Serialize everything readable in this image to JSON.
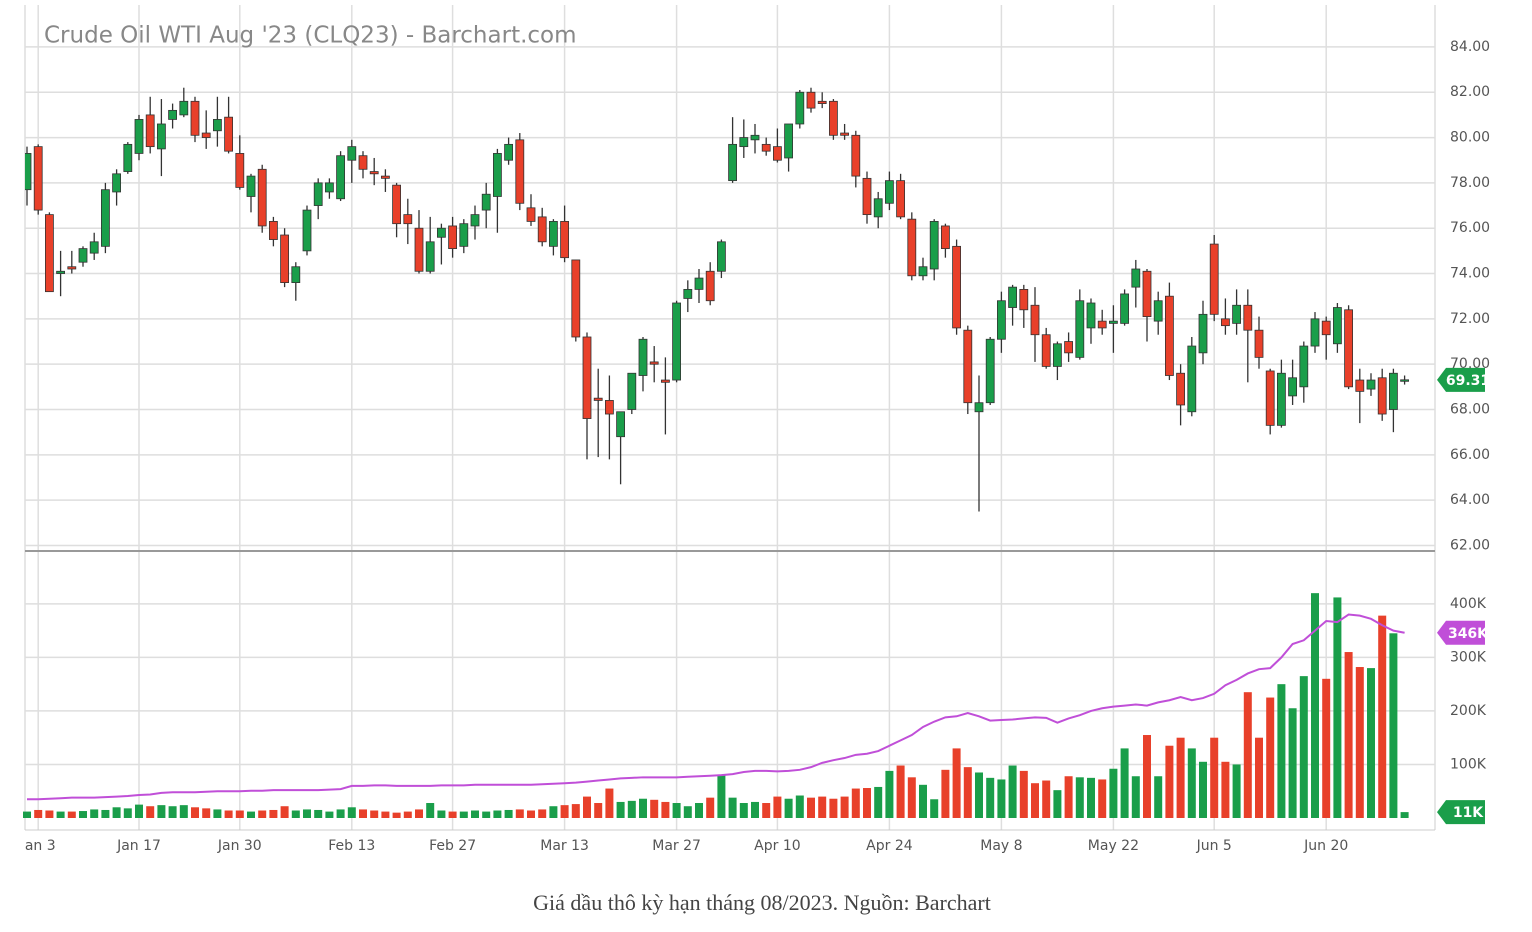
{
  "chart_data": {
    "type": "candlestick",
    "title": "Crude Oil WTI Aug '23 (CLQ23) - Barchart.com",
    "caption": "Giá dầu thô kỳ hạn tháng 08/2023. Nguồn: Barchart",
    "categories": [
      null,
      "Jan 3",
      null,
      null,
      null,
      null,
      null,
      null,
      null,
      null,
      "Jan 17",
      null,
      null,
      null,
      null,
      null,
      null,
      null,
      null,
      "Jan 30",
      null,
      null,
      null,
      null,
      null,
      null,
      null,
      null,
      null,
      "Feb 13",
      null,
      null,
      null,
      null,
      null,
      null,
      null,
      null,
      "Feb 27",
      null,
      null,
      null,
      null,
      null,
      null,
      null,
      null,
      null,
      "Mar 13",
      null,
      null,
      null,
      null,
      null,
      null,
      null,
      null,
      null,
      "Mar 27",
      null,
      null,
      null,
      null,
      null,
      null,
      null,
      null,
      "Apr 10",
      null,
      null,
      null,
      null,
      null,
      null,
      null,
      null,
      null,
      "Apr 24",
      null,
      null,
      null,
      null,
      null,
      null,
      null,
      null,
      null,
      "May 8",
      null,
      null,
      null,
      null,
      null,
      null,
      null,
      null,
      null,
      "May 22",
      null,
      null,
      null,
      null,
      null,
      null,
      null,
      null,
      "Jun 5",
      null,
      null,
      null,
      null,
      null,
      null,
      null,
      null,
      null,
      "Jun 20",
      null,
      null,
      null,
      null,
      null,
      null,
      null
    ],
    "open": [
      77.7,
      79.6,
      76.6,
      74.0,
      74.3,
      74.5,
      74.9,
      75.2,
      77.6,
      78.5,
      79.3,
      81.0,
      79.5,
      80.8,
      81.0,
      81.6,
      80.2,
      80.3,
      80.9,
      79.3,
      77.4,
      78.6,
      76.3,
      75.7,
      73.6,
      75.0,
      77.0,
      77.6,
      77.3,
      79.0,
      79.2,
      78.5,
      78.3,
      77.9,
      76.6,
      76.0,
      74.1,
      75.6,
      76.1,
      75.2,
      76.1,
      76.8,
      77.4,
      79.0,
      79.9,
      76.9,
      76.5,
      75.2,
      76.3,
      74.6,
      71.2,
      68.5,
      68.4,
      66.8,
      68.0,
      69.5,
      70.1,
      69.3,
      69.3,
      72.9,
      73.3,
      74.1,
      74.1,
      78.1,
      79.6,
      79.9,
      79.7,
      79.6,
      79.1,
      80.6,
      82.0,
      81.6,
      81.6,
      80.2,
      80.1,
      78.2,
      76.5,
      77.1,
      78.1,
      76.4,
      73.9,
      74.2,
      76.1,
      75.2,
      71.5,
      67.9,
      68.3,
      71.1,
      72.5,
      73.3,
      72.6,
      71.3,
      69.9,
      71.0,
      70.3,
      71.6,
      71.9,
      71.8,
      71.8,
      73.4,
      74.1,
      71.9,
      73.0,
      69.6,
      67.9,
      70.5,
      75.3,
      72.0,
      71.8,
      72.6,
      71.5,
      69.7,
      67.3,
      68.6,
      69.0,
      70.8,
      71.9,
      70.9,
      72.4,
      69.3,
      68.9,
      69.4,
      68.0,
      69.3
    ],
    "high": [
      79.6,
      79.7,
      76.7,
      75.0,
      75.0,
      75.2,
      75.8,
      78.0,
      78.6,
      79.8,
      81.0,
      81.8,
      81.7,
      81.5,
      82.2,
      81.8,
      81.2,
      81.8,
      81.8,
      80.1,
      78.4,
      78.8,
      76.5,
      76.0,
      74.5,
      77.0,
      78.2,
      78.2,
      79.4,
      79.9,
      79.4,
      79.1,
      78.6,
      78.0,
      77.3,
      76.8,
      76.5,
      76.2,
      76.5,
      76.4,
      77.0,
      78.0,
      79.5,
      80.0,
      80.2,
      77.5,
      76.9,
      76.4,
      77.0,
      74.6,
      71.4,
      69.8,
      69.5,
      67.9,
      69.6,
      71.2,
      70.8,
      70.3,
      72.8,
      73.7,
      74.2,
      74.5,
      75.5,
      80.9,
      80.8,
      80.6,
      80.0,
      80.4,
      80.6,
      82.1,
      82.2,
      82.0,
      81.7,
      80.6,
      80.3,
      78.5,
      77.6,
      78.5,
      78.4,
      76.7,
      74.7,
      76.4,
      76.2,
      75.5,
      71.7,
      69.5,
      71.2,
      73.2,
      73.5,
      73.5,
      73.4,
      71.6,
      71.0,
      71.4,
      73.3,
      72.9,
      72.4,
      72.6,
      73.3,
      74.6,
      74.2,
      73.2,
      73.6,
      70.0,
      71.2,
      72.8,
      75.7,
      72.9,
      73.3,
      73.3,
      72.1,
      69.8,
      70.2,
      70.2,
      71.0,
      72.3,
      72.1,
      72.7,
      72.6,
      69.8,
      69.6,
      69.8,
      69.8,
      69.5
    ],
    "low": [
      77.0,
      76.6,
      73.2,
      73.0,
      74.0,
      74.3,
      74.6,
      74.9,
      77.0,
      78.4,
      79.0,
      79.3,
      78.3,
      80.4,
      80.9,
      79.8,
      79.5,
      79.6,
      79.3,
      77.7,
      76.7,
      75.8,
      75.2,
      73.4,
      72.8,
      74.8,
      76.4,
      77.3,
      77.2,
      78.0,
      78.2,
      77.9,
      77.6,
      75.6,
      75.3,
      74.0,
      74.0,
      74.4,
      74.7,
      74.9,
      75.5,
      76.0,
      75.8,
      78.8,
      76.8,
      76.1,
      75.2,
      74.8,
      74.5,
      71.0,
      65.8,
      65.9,
      65.8,
      64.7,
      67.8,
      68.8,
      69.2,
      66.9,
      69.2,
      72.3,
      72.7,
      72.6,
      73.8,
      78.0,
      79.1,
      79.3,
      79.2,
      78.9,
      78.5,
      80.4,
      81.1,
      81.3,
      79.9,
      79.9,
      77.8,
      76.2,
      76.0,
      76.8,
      76.4,
      73.7,
      73.7,
      73.7,
      74.7,
      71.3,
      67.8,
      63.5,
      68.2,
      70.5,
      71.7,
      71.6,
      70.1,
      69.8,
      69.3,
      70.1,
      70.2,
      70.9,
      71.3,
      70.5,
      71.7,
      72.5,
      71.0,
      71.3,
      69.3,
      67.3,
      67.7,
      70.0,
      71.9,
      71.3,
      71.3,
      69.2,
      69.8,
      66.9,
      67.2,
      68.2,
      68.3,
      70.5,
      70.2,
      70.5,
      68.9,
      67.4,
      68.6,
      67.5,
      67.0,
      69.1
    ],
    "close": [
      79.3,
      76.8,
      73.2,
      74.1,
      74.2,
      75.1,
      75.4,
      77.7,
      78.4,
      79.7,
      80.8,
      79.6,
      80.6,
      81.2,
      81.6,
      80.1,
      80.0,
      80.8,
      79.4,
      77.8,
      78.3,
      76.1,
      75.5,
      73.6,
      74.3,
      76.8,
      78.0,
      78.0,
      79.2,
      79.6,
      78.6,
      78.4,
      78.2,
      76.2,
      76.2,
      74.1,
      75.4,
      76.0,
      75.1,
      76.2,
      76.6,
      77.5,
      79.3,
      79.7,
      77.1,
      76.3,
      75.4,
      76.3,
      74.7,
      71.2,
      67.6,
      68.4,
      67.8,
      67.9,
      69.6,
      71.1,
      70.0,
      69.2,
      72.7,
      73.3,
      73.8,
      72.8,
      75.4,
      79.7,
      80.0,
      80.1,
      79.4,
      79.0,
      80.6,
      82.0,
      81.3,
      81.5,
      80.1,
      80.1,
      78.3,
      76.6,
      77.3,
      78.1,
      76.5,
      73.9,
      74.3,
      76.3,
      75.1,
      71.6,
      68.3,
      68.3,
      71.1,
      72.8,
      73.4,
      72.4,
      71.3,
      69.9,
      70.9,
      70.5,
      72.8,
      72.7,
      71.6,
      71.9,
      73.1,
      74.2,
      72.1,
      72.8,
      69.5,
      68.2,
      70.8,
      72.2,
      72.2,
      71.7,
      72.6,
      71.5,
      70.3,
      67.3,
      69.6,
      69.4,
      70.8,
      72.0,
      71.3,
      72.5,
      69.0,
      68.8,
      69.3,
      67.8,
      69.6,
      69.31
    ],
    "volume": [
      12000,
      15000,
      14000,
      12000,
      12000,
      13000,
      16000,
      15000,
      20000,
      18000,
      25000,
      22000,
      24000,
      22000,
      24000,
      20000,
      18000,
      16000,
      14000,
      14000,
      12000,
      14000,
      15000,
      22000,
      14000,
      16000,
      15000,
      12000,
      16000,
      20000,
      16000,
      14000,
      12000,
      10000,
      12000,
      16000,
      28000,
      14000,
      12000,
      12000,
      14000,
      12000,
      14000,
      15000,
      16000,
      14000,
      16000,
      22000,
      24000,
      26000,
      40000,
      28000,
      55000,
      30000,
      32000,
      36000,
      34000,
      30000,
      28000,
      22000,
      28000,
      38000,
      80000,
      38000,
      28000,
      30000,
      28000,
      40000,
      36000,
      42000,
      38000,
      40000,
      36000,
      40000,
      55000,
      56000,
      58000,
      88000,
      98000,
      76000,
      62000,
      35000,
      90000,
      130000,
      95000,
      85000,
      75000,
      72000,
      98000,
      88000,
      65000,
      70000,
      52000,
      78000,
      76000,
      75000,
      72000,
      92000,
      130000,
      78000,
      155000,
      78000,
      135000,
      150000,
      130000,
      105000,
      150000,
      105000,
      100000,
      235000,
      150000,
      225000,
      250000,
      205000,
      265000,
      420000,
      260000,
      412000,
      310000,
      282000,
      280000,
      378000,
      345000,
      11000
    ],
    "volume_ma": [
      35000,
      35000,
      36000,
      37000,
      38000,
      38000,
      38000,
      39000,
      40000,
      41000,
      43000,
      44000,
      47000,
      48000,
      48000,
      48000,
      49000,
      50000,
      50000,
      50000,
      51000,
      51000,
      52000,
      52000,
      52000,
      52000,
      52000,
      53000,
      54000,
      60000,
      60000,
      61000,
      61000,
      60000,
      60000,
      60000,
      60000,
      61000,
      61000,
      61000,
      62000,
      62000,
      62000,
      62000,
      62000,
      62000,
      63000,
      64000,
      65000,
      66000,
      68000,
      70000,
      72000,
      74000,
      75000,
      76000,
      76000,
      76000,
      76000,
      77000,
      78000,
      79000,
      80000,
      82000,
      86000,
      88000,
      88000,
      87000,
      88000,
      90000,
      95000,
      103000,
      108000,
      112000,
      118000,
      120000,
      125000,
      135000,
      145000,
      155000,
      170000,
      180000,
      188000,
      190000,
      196000,
      190000,
      182000,
      183000,
      184000,
      186000,
      188000,
      187000,
      178000,
      186000,
      192000,
      200000,
      205000,
      208000,
      210000,
      212000,
      210000,
      216000,
      220000,
      226000,
      220000,
      224000,
      232000,
      248000,
      258000,
      270000,
      278000,
      280000,
      300000,
      325000,
      332000,
      350000,
      368000,
      366000,
      380000,
      378000,
      372000,
      360000,
      350000,
      346000
    ],
    "volume_last_label": "11K",
    "volume_ma_last_label": "346K",
    "up_color": "#1a9e4a",
    "down_color": "#e8402a",
    "ma_color": "#c04fd8",
    "ylim": [
      61.8,
      85.85
    ],
    "yticks": [
      {
        "value": 62,
        "label": "62.00"
      },
      {
        "value": 64,
        "label": "64.00"
      },
      {
        "value": 66,
        "label": "66.00"
      },
      {
        "value": 68,
        "label": "68.00"
      },
      {
        "value": 70,
        "label": "70.00"
      },
      {
        "value": 72,
        "label": "72.00"
      },
      {
        "value": 74,
        "label": "74.00"
      },
      {
        "value": 76,
        "label": "76.00"
      },
      {
        "value": 78,
        "label": "78.00"
      },
      {
        "value": 80,
        "label": "80.00"
      },
      {
        "value": 82,
        "label": "82.00"
      },
      {
        "value": 84,
        "label": "84.00"
      }
    ],
    "y2lim": [
      0,
      495000
    ],
    "y2ticks": [
      {
        "value": 100000,
        "label": "100K"
      },
      {
        "value": 200000,
        "label": "200K"
      },
      {
        "value": 300000,
        "label": "300K"
      },
      {
        "value": 400000,
        "label": "400K"
      }
    ],
    "grid": true
  }
}
